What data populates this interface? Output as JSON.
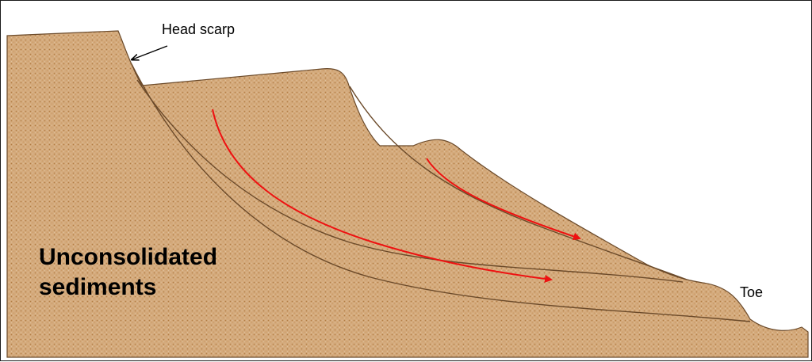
{
  "labels": {
    "head_scarp": "Head scarp",
    "toe": "Toe",
    "material": "Unconsolidated sediments"
  },
  "colors": {
    "sediment_fill": "#d4aa7c",
    "sediment_speckle": "#b07a40",
    "slip_surface": "#6b4a2a",
    "flow_arrow": "#ee1111",
    "pointer_arrow": "#000000"
  }
}
